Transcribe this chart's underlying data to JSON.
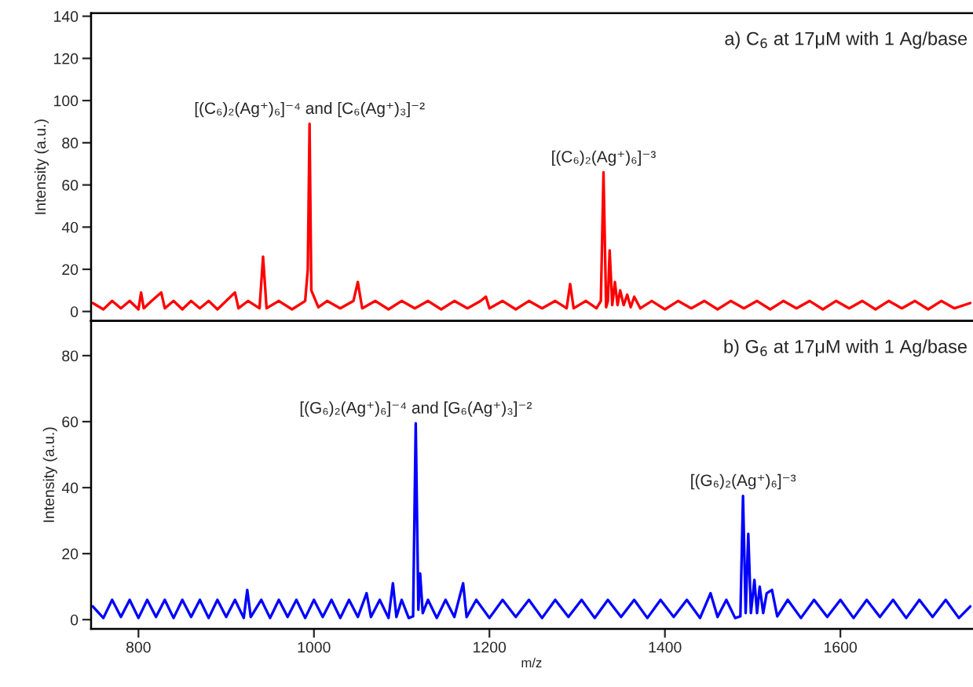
{
  "chart_data": [
    {
      "type": "line",
      "title": "a) C$_{6}$ at 17μM with 1 Ag/base",
      "ylabel": "Intensity (a.u.)",
      "xlim": [
        746,
        1750
      ],
      "xticks": [
        800,
        1000,
        1200,
        1400,
        1600
      ],
      "ylim": [
        -4.5,
        141.5
      ],
      "yticks": [
        0,
        20,
        40,
        60,
        80,
        100,
        120,
        140
      ],
      "tick_labels": "y",
      "grid": false,
      "legend": false,
      "series": [
        {
          "color": "#ff0000",
          "x": [
            748,
            760,
            770,
            780,
            790,
            800,
            803,
            806,
            815,
            826,
            830,
            840,
            850,
            860,
            870,
            880,
            890,
            900,
            910,
            914,
            925,
            938,
            942,
            946,
            960,
            975,
            990,
            993,
            995,
            997,
            999,
            1005,
            1015,
            1030,
            1045,
            1050,
            1055,
            1070,
            1085,
            1100,
            1115,
            1130,
            1145,
            1160,
            1175,
            1190,
            1196,
            1200,
            1215,
            1230,
            1245,
            1260,
            1275,
            1288,
            1292,
            1296,
            1310,
            1322,
            1327,
            1330,
            1333,
            1335,
            1337,
            1340,
            1343,
            1346,
            1349,
            1353,
            1357,
            1361,
            1365,
            1372,
            1385,
            1400,
            1415,
            1430,
            1445,
            1460,
            1475,
            1490,
            1505,
            1520,
            1535,
            1550,
            1565,
            1580,
            1595,
            1610,
            1625,
            1640,
            1655,
            1670,
            1685,
            1700,
            1715,
            1730,
            1748
          ],
          "values": [
            4,
            1,
            5,
            1.5,
            5,
            1,
            9,
            1.5,
            5,
            9,
            1.5,
            5,
            1,
            5,
            1.5,
            5,
            1,
            5,
            9,
            1.5,
            5,
            1.5,
            26,
            1.5,
            5,
            1,
            5,
            20,
            89,
            10,
            8,
            2,
            5,
            1.5,
            5,
            14,
            1.5,
            5,
            1,
            5,
            1.5,
            5,
            1,
            5,
            1.5,
            5,
            7,
            1.5,
            5,
            1,
            5,
            1.5,
            5,
            1.5,
            13,
            1.5,
            5,
            1.5,
            5,
            66,
            2,
            5,
            29,
            3,
            14,
            3,
            10,
            3,
            8,
            2,
            7,
            1.5,
            5,
            1,
            5,
            1.5,
            5,
            1,
            5,
            1.5,
            5,
            1,
            5,
            1.5,
            5,
            1,
            5,
            1.5,
            5,
            1,
            5,
            1.5,
            5,
            1,
            5,
            1.5,
            4
          ]
        }
      ],
      "annotations": [
        {
          "text": "[(C₆)₂(Ag⁺)₆]⁻⁴ and [C₆(Ag⁺)₃]⁻²",
          "x": 995,
          "y": 89
        },
        {
          "text": "[(C₆)₂(Ag⁺)₆]⁻³",
          "x": 1330,
          "y": 66
        }
      ]
    },
    {
      "type": "line",
      "title": "b) G$_{6}$ at 17μM with 1 Ag/base",
      "xlabel": "m/z",
      "ylabel": "Intensity (a.u.)",
      "xlim": [
        746,
        1750
      ],
      "xticks": [
        800,
        1000,
        1200,
        1400,
        1600
      ],
      "ylim": [
        -2.8,
        90.5
      ],
      "yticks": [
        0,
        20,
        40,
        60,
        80
      ],
      "grid": false,
      "legend": false,
      "series": [
        {
          "color": "#0000ff",
          "x": [
            748,
            760,
            770,
            780,
            790,
            800,
            810,
            820,
            830,
            840,
            850,
            860,
            870,
            880,
            890,
            900,
            910,
            920,
            924,
            928,
            940,
            950,
            960,
            970,
            980,
            990,
            1000,
            1010,
            1020,
            1030,
            1040,
            1050,
            1060,
            1065,
            1075,
            1085,
            1090,
            1094,
            1100,
            1108,
            1113,
            1116,
            1119,
            1121,
            1124,
            1130,
            1140,
            1150,
            1160,
            1170,
            1174,
            1185,
            1200,
            1215,
            1230,
            1245,
            1260,
            1275,
            1290,
            1305,
            1320,
            1335,
            1350,
            1365,
            1380,
            1395,
            1410,
            1425,
            1440,
            1452,
            1460,
            1470,
            1480,
            1486,
            1489,
            1492,
            1495,
            1498,
            1502,
            1505,
            1508,
            1512,
            1516,
            1522,
            1528,
            1540,
            1555,
            1570,
            1585,
            1600,
            1615,
            1630,
            1645,
            1660,
            1675,
            1690,
            1705,
            1720,
            1735,
            1748
          ],
          "values": [
            4,
            0.5,
            6,
            0.8,
            6,
            0.5,
            6,
            0.8,
            6,
            0.5,
            6,
            0.8,
            6,
            0.5,
            6,
            0.8,
            6,
            0.5,
            9,
            0.8,
            6,
            0.5,
            6,
            0.8,
            6,
            0.5,
            6,
            0.8,
            6,
            0.5,
            6,
            0.8,
            8,
            0.8,
            6,
            0.5,
            11,
            0.8,
            6,
            0.5,
            1,
            59.5,
            3,
            14,
            2,
            6,
            0.5,
            6,
            0.8,
            11,
            0.8,
            6,
            0.5,
            6,
            0.8,
            6,
            0.5,
            6,
            0.8,
            6,
            0.5,
            6,
            0.8,
            6,
            0.5,
            6,
            0.8,
            6,
            0.5,
            8,
            0.8,
            6,
            0.5,
            1,
            37.5,
            2,
            26,
            2,
            12,
            2,
            10,
            2,
            8,
            9,
            1,
            6,
            0.5,
            6,
            0.8,
            6,
            0.5,
            6,
            0.8,
            6,
            0.5,
            6,
            0.8,
            6,
            0.5,
            4
          ]
        }
      ],
      "annotations": [
        {
          "text": "[(G₆)₂(Ag⁺)₆]⁻⁴ and [G₆(Ag⁺)₃]⁻²",
          "x": 1116,
          "y": 59.5
        },
        {
          "text": "[(G₆)₂(Ag⁺)₆]⁻³",
          "x": 1489,
          "y": 37.5
        }
      ]
    }
  ]
}
